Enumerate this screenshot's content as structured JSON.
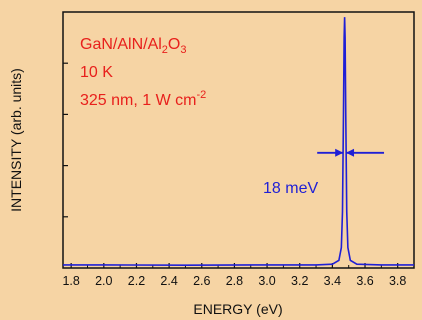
{
  "chart_data": {
    "type": "line",
    "title": "",
    "xlabel": "ENERGY (eV)",
    "ylabel": "INTENSITY (arb. units)",
    "xlim": [
      1.75,
      3.9
    ],
    "ylim": [
      0,
      1.0
    ],
    "x_ticks": [
      "1.8",
      "2.0",
      "2.2",
      "2.4",
      "2.6",
      "2.8",
      "3.0",
      "3.2",
      "3.4",
      "3.6",
      "3.8"
    ],
    "y_ticks_labeled": false,
    "grid": false,
    "series": [
      {
        "name": "",
        "color": "#1f1fd6",
        "x": [
          1.75,
          2.0,
          2.5,
          3.0,
          3.3,
          3.4,
          3.44,
          3.455,
          3.462,
          3.468,
          3.472,
          3.475,
          3.478,
          3.482,
          3.488,
          3.495,
          3.51,
          3.55,
          3.7,
          3.9
        ],
        "y": [
          0.012,
          0.012,
          0.011,
          0.012,
          0.012,
          0.015,
          0.03,
          0.08,
          0.22,
          0.6,
          0.9,
          0.98,
          0.9,
          0.6,
          0.22,
          0.08,
          0.03,
          0.015,
          0.012,
          0.012
        ]
      }
    ],
    "annotations": {
      "sample": {
        "parts": [
          "GaN/AlN/Al",
          "2",
          "O",
          "3"
        ],
        "color": "#e8201c"
      },
      "temperature": {
        "text": "10 K",
        "color": "#e8201c"
      },
      "excitation": {
        "text": "325 nm, 1 W cm",
        "sup": "-2",
        "color": "#e8201c"
      },
      "fwhm": {
        "text": "18 meV",
        "color": "#1f1fd6",
        "y_level": 0.45
      }
    }
  }
}
